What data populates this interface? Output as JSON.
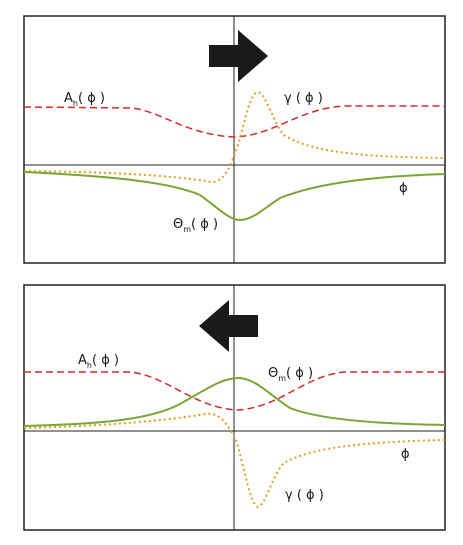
{
  "panels": [
    {
      "id": "top",
      "arrow_direction": "right",
      "labels": {
        "A": {
          "base": "A",
          "sub": "h",
          "arg": "( ϕ )"
        },
        "gamma": {
          "base": "γ",
          "arg": " ( ϕ )"
        },
        "theta": {
          "base": "Θ",
          "sub": "m",
          "arg": "( ϕ )"
        },
        "phi": {
          "text": "ϕ"
        }
      }
    },
    {
      "id": "bottom",
      "arrow_direction": "left",
      "labels": {
        "A": {
          "base": "A",
          "sub": "h",
          "arg": "( ϕ )"
        },
        "gamma": {
          "base": "γ",
          "arg": " ( ϕ )"
        },
        "theta": {
          "base": "Θ",
          "sub": "m",
          "arg": "( ϕ )"
        },
        "phi": {
          "text": "ϕ"
        }
      }
    }
  ],
  "colors": {
    "A_curve": "#d62b2b",
    "gamma_curve": "#e0a020",
    "theta_curve": "#7aa637",
    "arrow": "#1a1a1a",
    "frame": "#222222"
  }
}
